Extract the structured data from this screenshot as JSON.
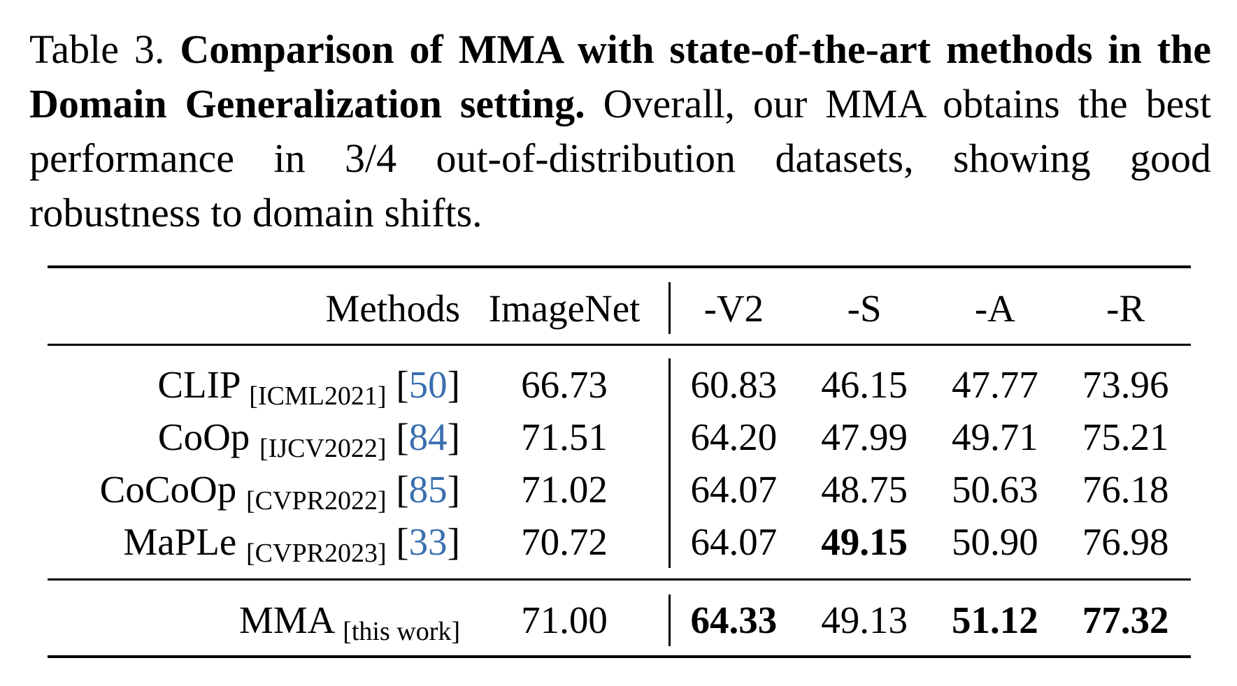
{
  "caption": {
    "prefix": "Table 3.",
    "bold_text": "Comparison of MMA with state-of-the-art methods in the Domain Generalization setting.",
    "rest_text": "Overall, our MMA obtains the best performance in 3/4 out-of-distribution datasets, showing good robustness to domain shifts."
  },
  "table": {
    "headers": [
      "Methods",
      "ImageNet",
      "-V2",
      "-S",
      "-A",
      "-R"
    ],
    "rows": [
      {
        "method": "CLIP",
        "venue": "[ICML2021]",
        "ref": "50",
        "values": [
          "66.73",
          "60.83",
          "46.15",
          "47.77",
          "73.96"
        ],
        "bold": [
          false,
          false,
          false,
          false,
          false
        ]
      },
      {
        "method": "CoOp",
        "venue": "[IJCV2022]",
        "ref": "84",
        "values": [
          "71.51",
          "64.20",
          "47.99",
          "49.71",
          "75.21"
        ],
        "bold": [
          false,
          false,
          false,
          false,
          false
        ]
      },
      {
        "method": "CoCoOp",
        "venue": "[CVPR2022]",
        "ref": "85",
        "values": [
          "71.02",
          "64.07",
          "48.75",
          "50.63",
          "76.18"
        ],
        "bold": [
          false,
          false,
          false,
          false,
          false
        ]
      },
      {
        "method": "MaPLe",
        "venue": "[CVPR2023]",
        "ref": "33",
        "values": [
          "70.72",
          "64.07",
          "49.15",
          "50.90",
          "76.98"
        ],
        "bold": [
          false,
          false,
          true,
          false,
          false
        ]
      }
    ],
    "ours": {
      "method": "MMA",
      "venue": "[this work]",
      "values": [
        "71.00",
        "64.33",
        "49.13",
        "51.12",
        "77.32"
      ],
      "bold": [
        false,
        true,
        false,
        true,
        true
      ]
    },
    "ref_color": "#3a6fb0"
  }
}
